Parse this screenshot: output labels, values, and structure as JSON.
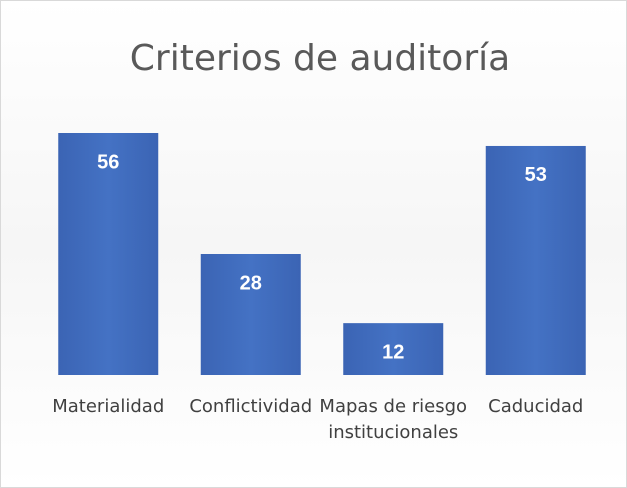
{
  "chart_data": {
    "type": "bar",
    "title": "Criterios de auditoría",
    "categories": [
      "Materialidad",
      "Conflictividad",
      "Mapas de riesgo institucionales",
      "Caducidad"
    ],
    "values": [
      56,
      28,
      12,
      53
    ],
    "color": "#4472c4"
  }
}
